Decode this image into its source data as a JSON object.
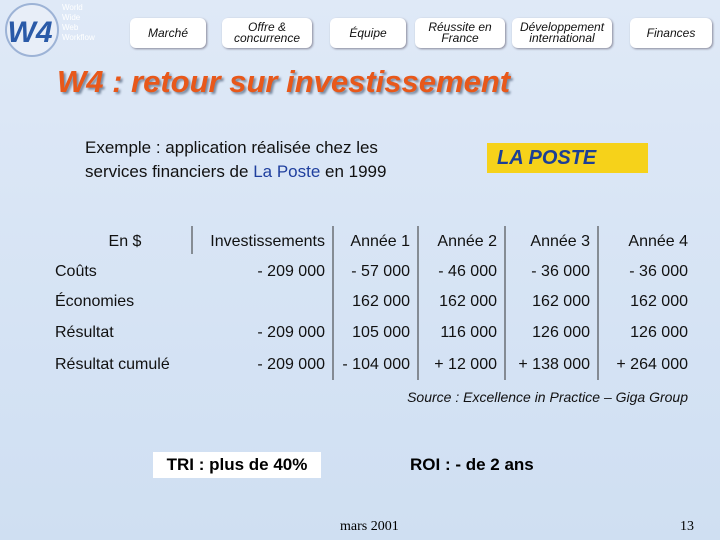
{
  "logo": {
    "mark": "W4",
    "lines": [
      "World",
      "Wide",
      "Web",
      "Workflow"
    ]
  },
  "nav": [
    "Marché",
    "Offre & concurrence",
    "Équipe",
    "Réussite en France",
    "Développement international",
    "Finances"
  ],
  "title": "W4 : retour sur investissement",
  "intro": {
    "line1": "Exemple : application réalisée chez les",
    "line2_start": "services financiers de ",
    "highlight": "La Poste",
    "line2_end": " en 1999"
  },
  "partner_logo": "LA POSTE",
  "table": {
    "header": [
      "En $",
      "Investissements",
      "Année 1",
      "Année 2",
      "Année 3",
      "Année 4"
    ],
    "rows": [
      [
        "Coûts",
        "- 209 000",
        "- 57 000",
        "- 46 000",
        "- 36 000",
        "- 36 000"
      ],
      [
        "Économies",
        null,
        "162 000",
        "162 000",
        "162 000",
        "162 000"
      ],
      [
        "Résultat",
        "- 209 000",
        "105 000",
        "116 000",
        "126 000",
        "126 000"
      ],
      [
        "Résultat cumulé",
        "- 209 000",
        "- 104 000",
        "+ 12 000",
        "+ 138 000",
        "+ 264 000"
      ]
    ]
  },
  "source": "Source :  Excellence in Practice – Giga Group",
  "tri": "TRI : plus de 40%",
  "roi": "ROI : - de 2 ans",
  "footer": {
    "date": "mars 2001",
    "page": "13"
  }
}
